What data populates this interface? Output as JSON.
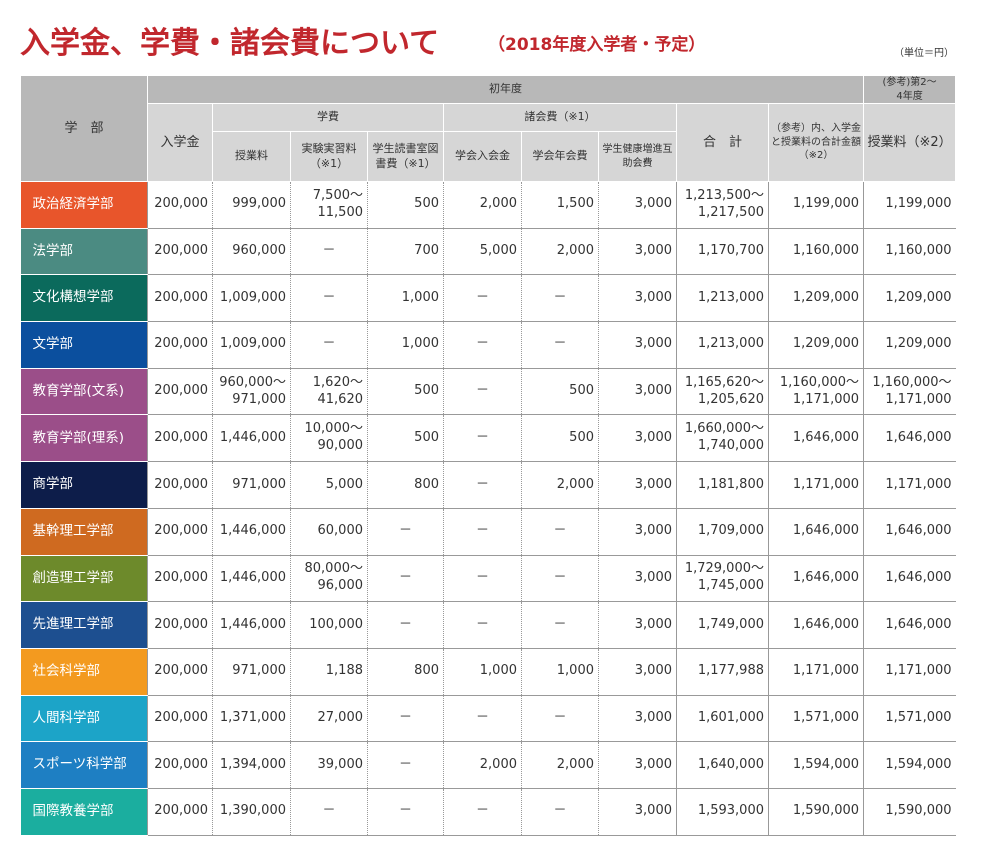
{
  "header": {
    "title": "入学金、学費・諸会費について",
    "subtitle": "（2018年度入学者・予定）",
    "unit": "（単位＝円）"
  },
  "table": {
    "header": [
      [
        "学　部",
        "初年度",
        "(参考)第2～4年度"
      ],
      [
        "入学金",
        "学費",
        "諸会費（※1）",
        "合　計",
        "（参考）内、入学金と授業料の合計金額（※2）",
        "授業料（※2）"
      ],
      [
        "授業料",
        "実験実習料（※1）",
        "学生読書室図書費（※1）",
        "学会入会金",
        "学会年会費",
        "学生健康増進互助会費"
      ]
    ],
    "rows": [
      {
        "faculty": "政治経済学部",
        "color": "#e8552b",
        "cells": [
          "200,000",
          "999,000",
          "7,500～11,500",
          "500",
          "2,000",
          "1,500",
          "3,000",
          "1,213,500～1,217,500",
          "1,199,000",
          "1,199,000"
        ]
      },
      {
        "faculty": "法学部",
        "color": "#4b8b82",
        "cells": [
          "200,000",
          "960,000",
          "－",
          "700",
          "5,000",
          "2,000",
          "3,000",
          "1,170,700",
          "1,160,000",
          "1,160,000"
        ]
      },
      {
        "faculty": "文化構想学部",
        "color": "#0b6a5c",
        "cells": [
          "200,000",
          "1,009,000",
          "－",
          "1,000",
          "－",
          "－",
          "3,000",
          "1,213,000",
          "1,209,000",
          "1,209,000"
        ]
      },
      {
        "faculty": "文学部",
        "color": "#0b4f9e",
        "cells": [
          "200,000",
          "1,009,000",
          "－",
          "1,000",
          "－",
          "－",
          "3,000",
          "1,213,000",
          "1,209,000",
          "1,209,000"
        ]
      },
      {
        "faculty": "教育学部(文系)",
        "color": "#9b4e89",
        "cells": [
          "200,000",
          "960,000～971,000",
          "1,620～41,620",
          "500",
          "－",
          "500",
          "3,000",
          "1,165,620～1,205,620",
          "1,160,000～1,171,000",
          "1,160,000～1,171,000"
        ]
      },
      {
        "faculty": "教育学部(理系)",
        "color": "#9b4e89",
        "cells": [
          "200,000",
          "1,446,000",
          "10,000～90,000",
          "500",
          "－",
          "500",
          "3,000",
          "1,660,000～1,740,000",
          "1,646,000",
          "1,646,000"
        ]
      },
      {
        "faculty": "商学部",
        "color": "#0d1d4a",
        "cells": [
          "200,000",
          "971,000",
          "5,000",
          "800",
          "－",
          "2,000",
          "3,000",
          "1,181,800",
          "1,171,000",
          "1,171,000"
        ]
      },
      {
        "faculty": "基幹理工学部",
        "color": "#cf6a20",
        "cells": [
          "200,000",
          "1,446,000",
          "60,000",
          "－",
          "－",
          "－",
          "3,000",
          "1,709,000",
          "1,646,000",
          "1,646,000"
        ]
      },
      {
        "faculty": "創造理工学部",
        "color": "#6d8a2b",
        "cells": [
          "200,000",
          "1,446,000",
          "80,000～96,000",
          "－",
          "－",
          "－",
          "3,000",
          "1,729,000～1,745,000",
          "1,646,000",
          "1,646,000"
        ]
      },
      {
        "faculty": "先進理工学部",
        "color": "#1d4f90",
        "cells": [
          "200,000",
          "1,446,000",
          "100,000",
          "－",
          "－",
          "－",
          "3,000",
          "1,749,000",
          "1,646,000",
          "1,646,000"
        ]
      },
      {
        "faculty": "社会科学部",
        "color": "#f39a1f",
        "cells": [
          "200,000",
          "971,000",
          "1,188",
          "800",
          "1,000",
          "1,000",
          "3,000",
          "1,177,988",
          "1,171,000",
          "1,171,000"
        ]
      },
      {
        "faculty": "人間科学部",
        "color": "#1ca4c8",
        "cells": [
          "200,000",
          "1,371,000",
          "27,000",
          "－",
          "－",
          "－",
          "3,000",
          "1,601,000",
          "1,571,000",
          "1,571,000"
        ]
      },
      {
        "faculty": "スポーツ科学部",
        "color": "#1e7fc3",
        "cells": [
          "200,000",
          "1,394,000",
          "39,000",
          "－",
          "2,000",
          "2,000",
          "3,000",
          "1,640,000",
          "1,594,000",
          "1,594,000"
        ]
      },
      {
        "faculty": "国際教養学部",
        "color": "#1bae9f",
        "cells": [
          "200,000",
          "1,390,000",
          "－",
          "－",
          "－",
          "－",
          "3,000",
          "1,593,000",
          "1,590,000",
          "1,590,000"
        ]
      }
    ]
  }
}
